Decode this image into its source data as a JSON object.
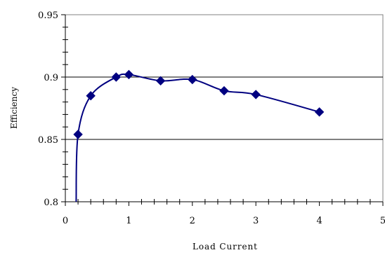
{
  "chart_data": {
    "type": "line",
    "title": "",
    "xlabel": "Load Current",
    "ylabel": "Efficiency",
    "xlim": [
      0,
      5
    ],
    "ylim": [
      0.8,
      0.95
    ],
    "x_ticks": [
      "0",
      "1",
      "2",
      "3",
      "4",
      "5"
    ],
    "y_ticks": [
      "0.8",
      "0.85",
      "0.9",
      "0.95"
    ],
    "grid": "horizontal major lines",
    "legend": "none",
    "series": [
      {
        "marker": "diamond",
        "color": "#000080",
        "x": [
          0.2,
          0.4,
          0.8,
          1.0,
          1.5,
          2.0,
          2.5,
          3.0,
          4.0
        ],
        "y": [
          0.854,
          0.885,
          0.9,
          0.902,
          0.897,
          0.898,
          0.889,
          0.886,
          0.872
        ]
      }
    ],
    "curve_tail": {
      "x": 0.17,
      "y": 0.8
    }
  }
}
